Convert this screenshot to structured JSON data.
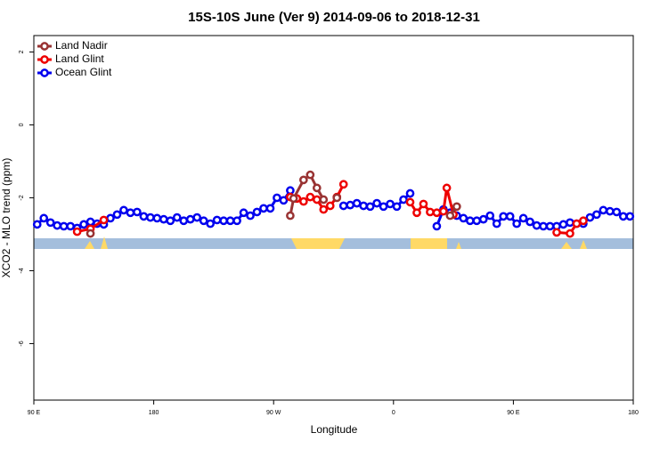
{
  "chart_data": {
    "type": "line",
    "title": "15S-10S June (Ver 9)   2014-09-06 to 2018-12-31",
    "x_label": "Longitude",
    "y_label": "XCO2 - MLO trend (ppm)",
    "xlim": [
      90,
      540
    ],
    "xticks": [
      {
        "value": 90,
        "label": "90 E"
      },
      180,
      {
        "value": 270,
        "label": "90 W"
      },
      {
        "value": 360,
        "label": "0"
      },
      {
        "value": 450,
        "label": "90 E"
      },
      {
        "value": 540,
        "label": "180"
      }
    ],
    "ylim": [
      -7.55,
      2.45
    ],
    "yticks": [
      -6,
      -4,
      -2,
      0,
      2
    ],
    "legend": "top-left",
    "series": [
      {
        "name": "Land Nadir",
        "color": "#993333",
        "x": [
          132.5,
          137.5,
          282.5,
          285,
          292.5,
          297.5,
          302.5,
          307.5,
          312.5,
          317.5,
          320,
          402.5,
          407.5
        ],
        "values": [
          -2.98,
          null,
          -2.49,
          -2.02,
          -1.51,
          -1.37,
          -1.73,
          -2.05,
          null,
          -2.0,
          null,
          -2.49,
          -2.24
        ]
      },
      {
        "name": "Land Glint",
        "color": "#ee0000",
        "x": [
          122.5,
          132.5,
          142.5,
          147.5,
          282.5,
          287.5,
          292.5,
          297.5,
          302.5,
          307.5,
          312.5,
          317.5,
          322.5,
          327.5,
          372.5,
          377.5,
          382.5,
          387.5,
          392.5,
          397.5,
          400,
          405,
          410,
          482.5,
          492.5,
          497.5,
          502.5
        ],
        "values": [
          -2.93,
          -2.85,
          -2.61,
          null,
          -1.98,
          -2.02,
          -2.1,
          -1.98,
          -2.05,
          -2.32,
          -2.22,
          -1.98,
          -1.63,
          null,
          -2.12,
          -2.41,
          -2.17,
          -2.39,
          -2.41,
          -2.37,
          -1.73,
          -2.46,
          null,
          -2.95,
          -2.98,
          -2.71,
          -2.63
        ]
      },
      {
        "name": "Ocean Glint",
        "color": "#0000ee",
        "x": [
          92.5,
          97.5,
          102.5,
          107.5,
          112.5,
          117.5,
          122.5,
          127.5,
          132.5,
          137.5,
          142.5,
          147.5,
          152.5,
          157.5,
          162.5,
          167.5,
          172.5,
          177.5,
          182.5,
          187.5,
          192.5,
          197.5,
          202.5,
          207.5,
          212.5,
          217.5,
          222.5,
          227.5,
          232.5,
          237.5,
          242.5,
          247.5,
          252.5,
          257.5,
          262.5,
          267.5,
          272.5,
          277.5,
          282.5,
          287.5,
          322.5,
          327.5,
          332.5,
          337.5,
          342.5,
          347.5,
          352.5,
          357.5,
          362.5,
          367.5,
          372.5,
          377.5,
          392.5,
          397.5,
          402.5,
          407.5,
          412.5,
          417.5,
          422.5,
          427.5,
          432.5,
          437.5,
          442.5,
          447.5,
          452.5,
          457.5,
          462.5,
          467.5,
          472.5,
          477.5,
          482.5,
          487.5,
          492.5,
          497.5,
          502.5,
          507.5,
          512.5,
          517.5,
          522.5,
          527.5,
          532.5,
          537.5
        ],
        "values": [
          -2.73,
          -2.56,
          -2.68,
          -2.76,
          -2.78,
          -2.78,
          -2.83,
          -2.73,
          -2.66,
          -2.71,
          -2.73,
          -2.56,
          -2.46,
          -2.34,
          -2.41,
          -2.39,
          -2.51,
          -2.54,
          -2.56,
          -2.59,
          -2.63,
          -2.54,
          -2.63,
          -2.59,
          -2.54,
          -2.63,
          -2.71,
          -2.61,
          -2.63,
          -2.63,
          -2.63,
          -2.41,
          -2.49,
          -2.39,
          -2.29,
          -2.29,
          -2.0,
          -2.07,
          -1.8,
          null,
          -2.22,
          -2.2,
          -2.15,
          -2.22,
          -2.24,
          -2.15,
          -2.24,
          -2.17,
          -2.24,
          -2.05,
          -1.88,
          null,
          -2.78,
          -2.32,
          -2.41,
          -2.49,
          -2.56,
          -2.63,
          -2.63,
          -2.59,
          -2.49,
          -2.71,
          -2.51,
          -2.51,
          -2.71,
          -2.56,
          -2.66,
          -2.76,
          -2.78,
          -2.78,
          -2.78,
          -2.73,
          -2.68,
          -2.71,
          -2.71,
          -2.54,
          -2.46,
          -2.34,
          -2.37,
          -2.39,
          -2.51,
          -2.51
        ]
      }
    ]
  }
}
